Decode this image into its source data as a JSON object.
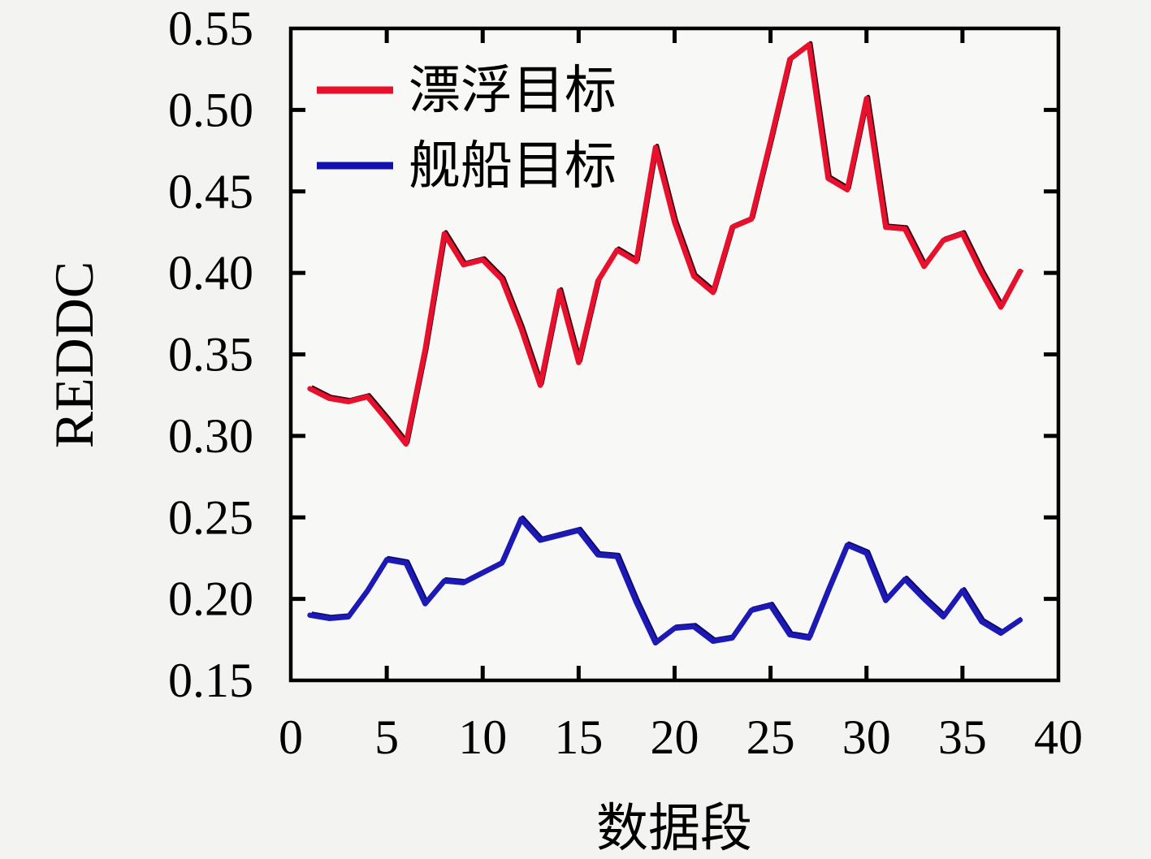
{
  "figure": {
    "background": "#f3f3f1",
    "plot_background": "#f8f8f6",
    "frame_color": "#000000",
    "tick_label_color": "#000000"
  },
  "chart_data": {
    "type": "line",
    "title": "",
    "xlabel": "数据段",
    "ylabel": "REDDC",
    "xlim": [
      0,
      40
    ],
    "ylim": [
      0.15,
      0.55
    ],
    "xticks": [
      0,
      5,
      10,
      15,
      20,
      25,
      30,
      35,
      40
    ],
    "yticks": [
      0.15,
      0.2,
      0.25,
      0.3,
      0.35,
      0.4,
      0.45,
      0.5,
      0.55
    ],
    "grid": false,
    "legend_position": "top-left",
    "x": [
      1,
      2,
      3,
      4,
      5,
      6,
      7,
      8,
      9,
      10,
      11,
      12,
      13,
      14,
      15,
      16,
      17,
      18,
      19,
      20,
      21,
      22,
      23,
      24,
      25,
      26,
      27,
      28,
      29,
      30,
      31,
      32,
      33,
      34,
      35,
      36,
      37,
      38
    ],
    "series": [
      {
        "name": "漂浮目标",
        "color": "#e8112d",
        "shadow_color": "#3a0212",
        "values": [
          0.329,
          0.323,
          0.321,
          0.324,
          0.31,
          0.295,
          0.353,
          0.424,
          0.405,
          0.408,
          0.396,
          0.366,
          0.331,
          0.389,
          0.345,
          0.395,
          0.414,
          0.407,
          0.477,
          0.431,
          0.398,
          0.388,
          0.428,
          0.433,
          0.481,
          0.531,
          0.54,
          0.458,
          0.451,
          0.507,
          0.428,
          0.427,
          0.404,
          0.42,
          0.424,
          0.4,
          0.379,
          0.401
        ]
      },
      {
        "name": "舰船目标",
        "color": "#1c19b4",
        "shadow_color": "#0c0a6e",
        "values": [
          0.19,
          0.188,
          0.189,
          0.205,
          0.224,
          0.222,
          0.197,
          0.211,
          0.21,
          0.216,
          0.222,
          0.249,
          0.236,
          0.239,
          0.242,
          0.227,
          0.226,
          0.198,
          0.173,
          0.182,
          0.183,
          0.174,
          0.176,
          0.193,
          0.196,
          0.178,
          0.176,
          0.205,
          0.233,
          0.228,
          0.199,
          0.212,
          0.2,
          0.189,
          0.205,
          0.186,
          0.179,
          0.187
        ]
      }
    ]
  }
}
